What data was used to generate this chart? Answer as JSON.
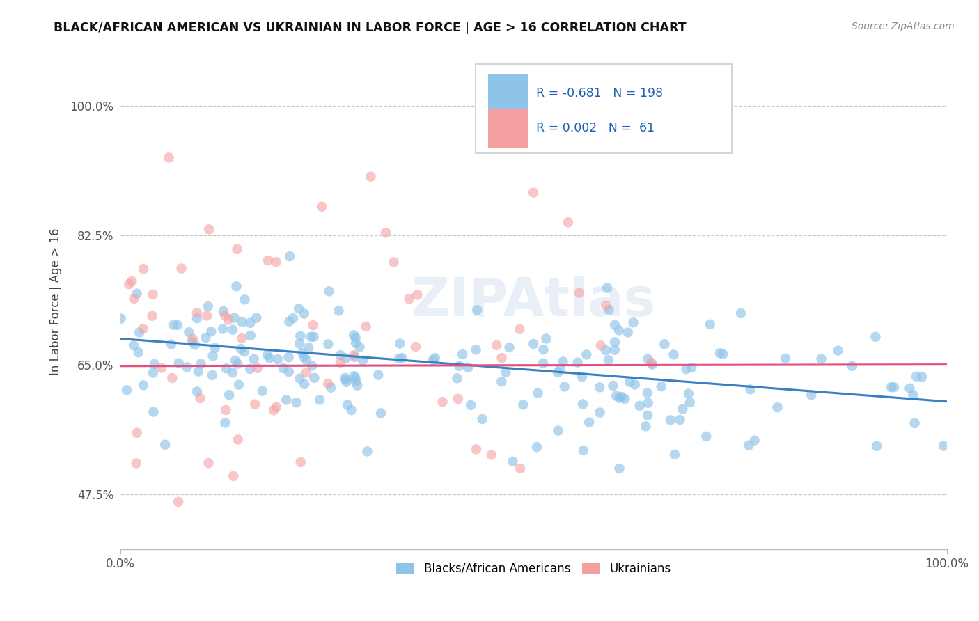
{
  "title": "BLACK/AFRICAN AMERICAN VS UKRAINIAN IN LABOR FORCE | AGE > 16 CORRELATION CHART",
  "source_text": "Source: ZipAtlas.com",
  "ylabel": "In Labor Force | Age > 16",
  "xlim": [
    0.0,
    100.0
  ],
  "ylim": [
    40.0,
    107.0
  ],
  "yticks": [
    47.5,
    65.0,
    82.5,
    100.0
  ],
  "ytick_labels": [
    "47.5%",
    "65.0%",
    "82.5%",
    "100.0%"
  ],
  "blue_R": -0.681,
  "blue_N": 198,
  "pink_R": 0.002,
  "pink_N": 61,
  "blue_color": "#8ec4e8",
  "pink_color": "#f4a0a0",
  "blue_line_color": "#3a7fc1",
  "pink_line_color": "#e05080",
  "grid_color": "#c8c8c8",
  "background_color": "#ffffff",
  "watermark_text": "ZIPAtlas",
  "legend_label_blue": "Blacks/African Americans",
  "legend_label_pink": "Ukrainians",
  "blue_line_x0": 0.0,
  "blue_line_y0": 68.5,
  "blue_line_x1": 100.0,
  "blue_line_y1": 60.0,
  "pink_line_x0": 0.0,
  "pink_line_y0": 64.8,
  "pink_line_x1": 100.0,
  "pink_line_y1": 65.0
}
